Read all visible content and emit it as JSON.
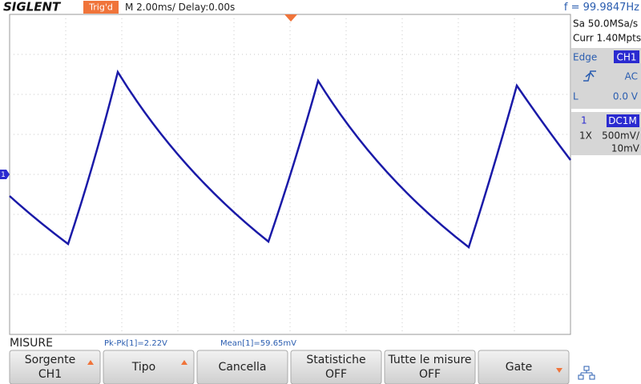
{
  "header": {
    "brand": "SIGLENT",
    "trigger_status": "Trig'd",
    "timebase": "M 2.00ms/ Delay:0.00s",
    "frequency": "f = 99.9847Hz"
  },
  "side_panel": {
    "sample_rate": "Sa 50.0MSa/s",
    "memory": "Curr 1.40Mpts",
    "trigger": {
      "type": "Edge",
      "source": "CH1",
      "coupling": "AC",
      "level_label": "L",
      "level": "0.0 V"
    },
    "channel": {
      "number": "1",
      "coupling": "DC1M",
      "probe": "1X",
      "scale": "500mV/",
      "offset": "10mV"
    }
  },
  "channel_marker": "1",
  "measurements": {
    "title": "MISURE",
    "items": [
      "Pk-Pk[1]=2.22V",
      "Mean[1]=59.65mV"
    ]
  },
  "softkeys": [
    {
      "label": "Sorgente",
      "value": "CH1"
    },
    {
      "label": "Tipo"
    },
    {
      "label": "Cancella"
    },
    {
      "label": "Statistiche",
      "value": "OFF"
    },
    {
      "label": "Tutte le misure",
      "value": "OFF"
    },
    {
      "label": "Gate"
    }
  ]
}
